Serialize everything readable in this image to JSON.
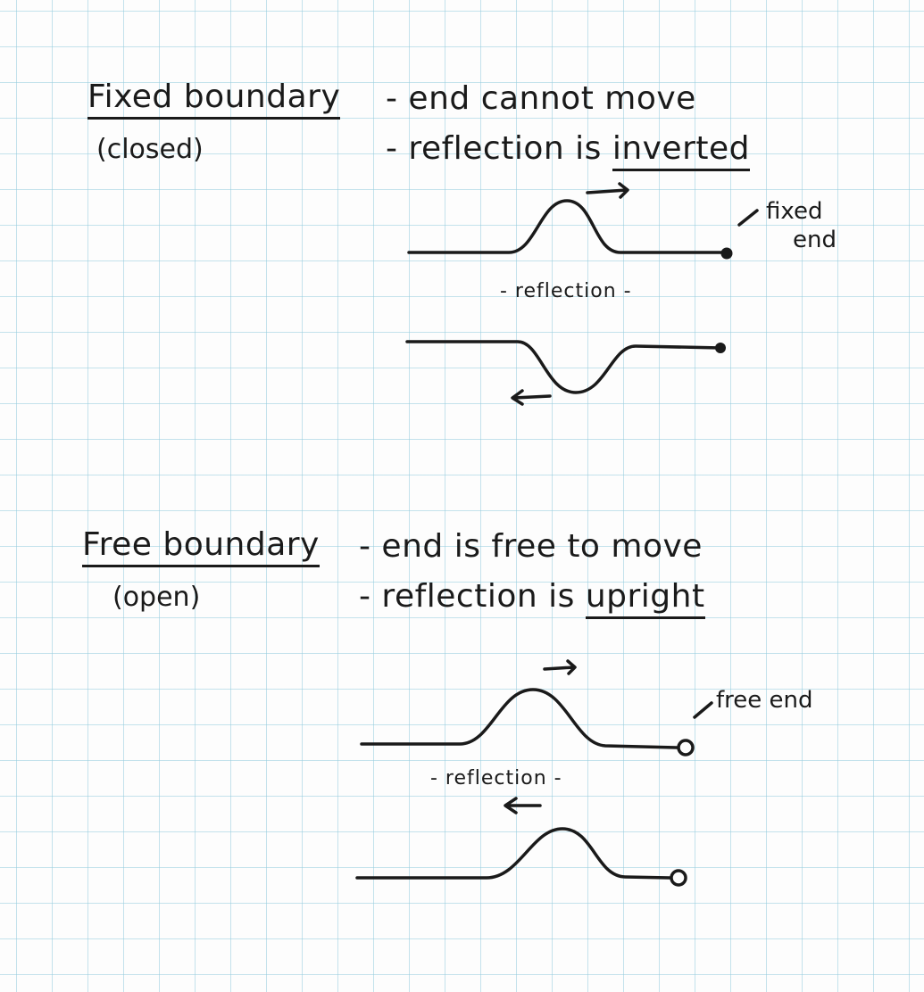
{
  "fixed": {
    "title": "Fixed boundary",
    "subtitle": "(closed)",
    "point1": "- end cannot move",
    "point2_prefix": "- reflection is ",
    "point2_emph": "inverted",
    "end_label_1": "fixed",
    "end_label_2": "end",
    "reflection_label": "- reflection -"
  },
  "free": {
    "title": "Free boundary",
    "subtitle": "(open)",
    "point1": "- end is free to move",
    "point2_prefix": "- reflection is ",
    "point2_emph": "upright",
    "end_label": "free end",
    "reflection_label": "- reflection -"
  }
}
